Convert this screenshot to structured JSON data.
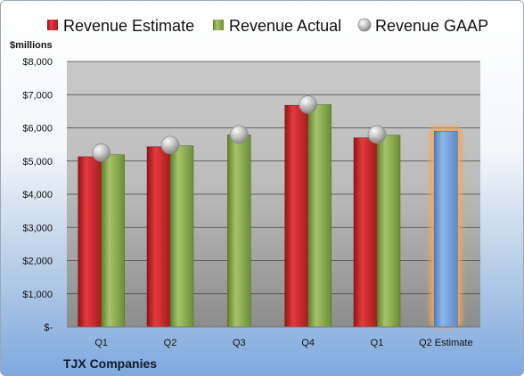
{
  "chart_data": {
    "type": "bar",
    "title": "",
    "unit_label": "$millions",
    "company": "TJX Companies",
    "categories": [
      "Q1",
      "Q2",
      "Q3",
      "Q4",
      "Q1",
      "Q2 Estimate"
    ],
    "ylim": [
      0,
      8000
    ],
    "yticks": [
      {
        "value": 0,
        "label": "$-"
      },
      {
        "value": 1000,
        "label": "$1,000"
      },
      {
        "value": 2000,
        "label": "$2,000"
      },
      {
        "value": 3000,
        "label": "$3,000"
      },
      {
        "value": 4000,
        "label": "$4,000"
      },
      {
        "value": 5000,
        "label": "$5,000"
      },
      {
        "value": 6000,
        "label": "$6,000"
      },
      {
        "value": 7000,
        "label": "$7,000"
      },
      {
        "value": 8000,
        "label": "$8,000"
      }
    ],
    "grid": true,
    "legend_position": "top",
    "series": [
      {
        "name": "Revenue Estimate",
        "kind": "bar",
        "color": "#c8262a",
        "values": [
          5130,
          5430,
          null,
          6680,
          5700,
          null
        ]
      },
      {
        "name": "Revenue Actual",
        "kind": "bar",
        "color": "#8aaa4c",
        "values": [
          5190,
          5460,
          5790,
          6700,
          5780,
          null
        ]
      },
      {
        "name": "Revenue GAAP",
        "kind": "marker",
        "color": "#b9b9b9",
        "values": [
          5250,
          5480,
          5800,
          6700,
          5800,
          null
        ]
      },
      {
        "name": "",
        "kind": "bar",
        "color": "#6b9ad6",
        "highlight": "#f5a65a",
        "values": [
          null,
          null,
          null,
          null,
          null,
          5900
        ]
      }
    ]
  }
}
